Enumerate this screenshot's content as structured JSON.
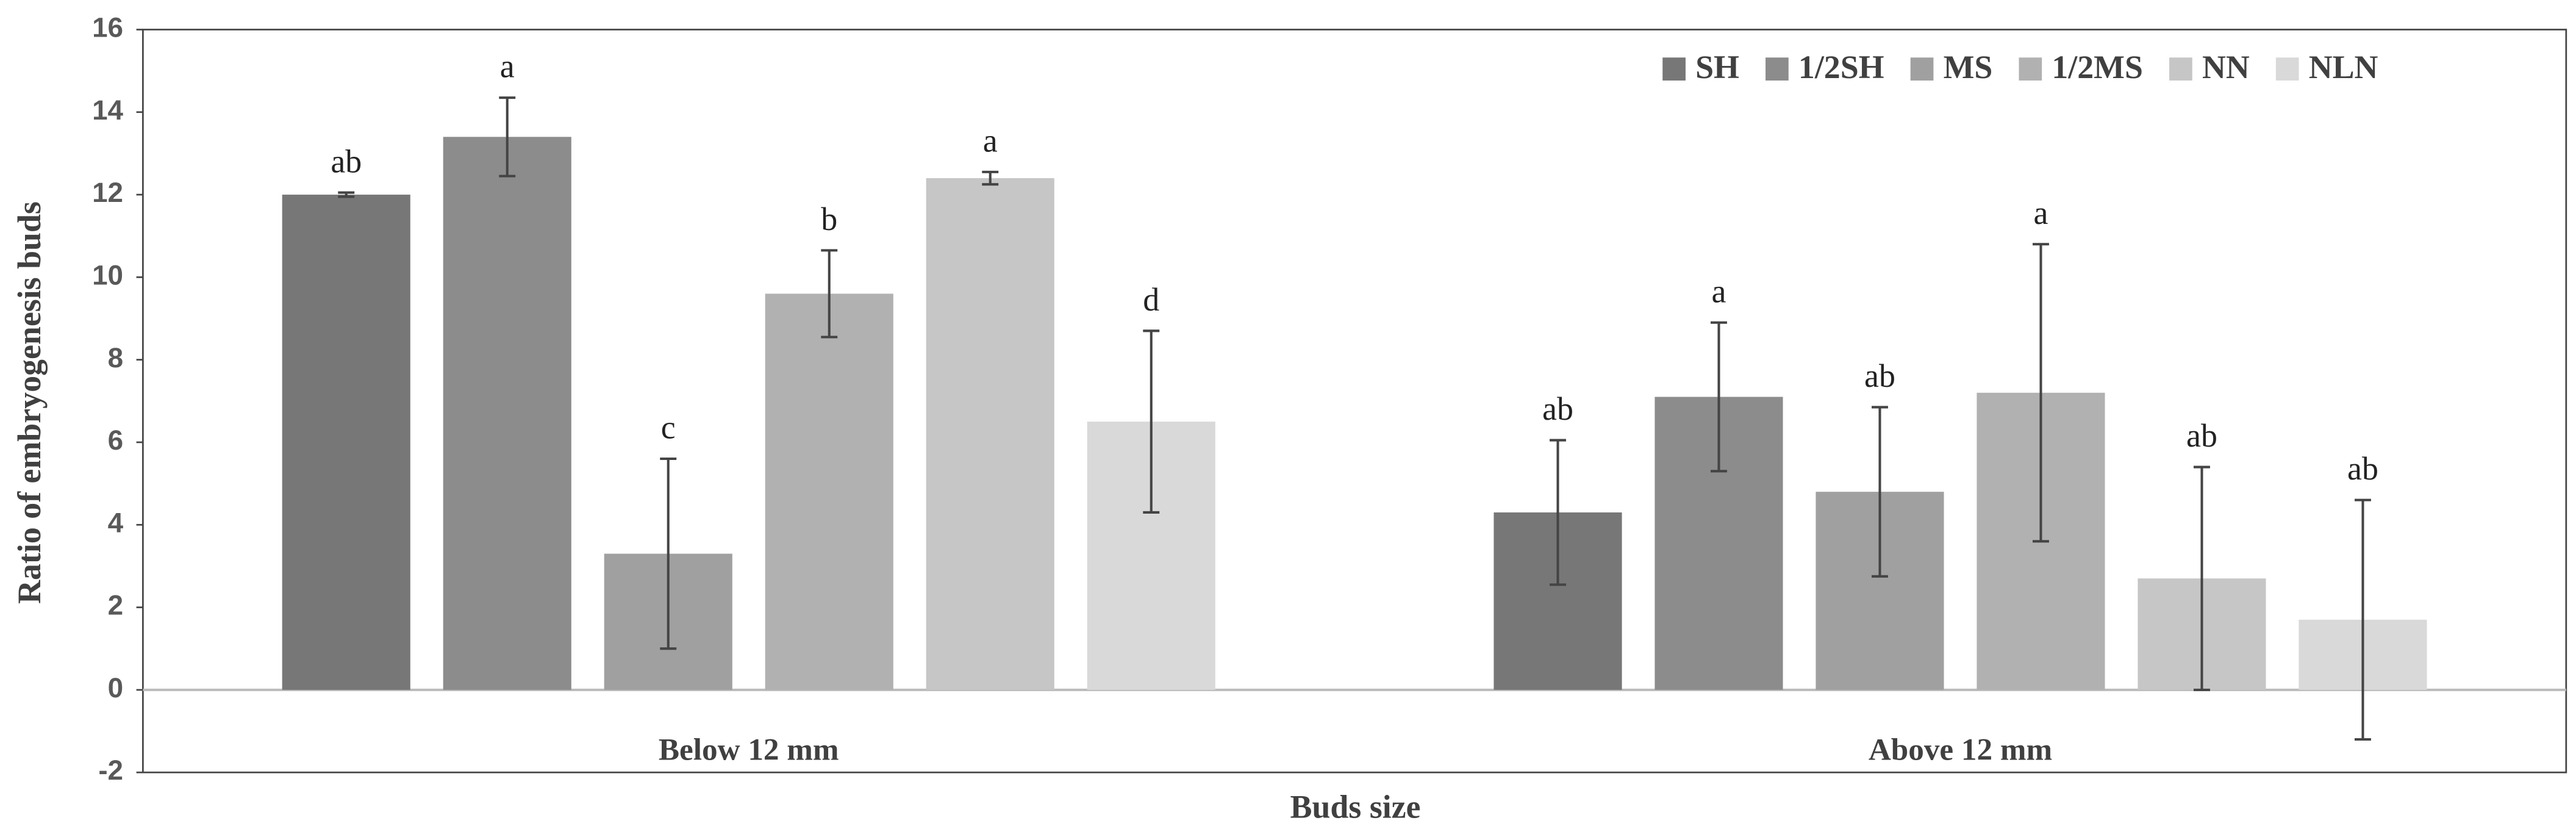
{
  "chart_data": {
    "type": "bar",
    "x_label": "Buds size",
    "y_label": "Ratio of embryogenesis buds",
    "categories": [
      "Below 12 mm",
      "Above 12 mm"
    ],
    "ylim": [
      -2,
      16
    ],
    "yticks": [
      -2,
      0,
      2,
      4,
      6,
      8,
      10,
      12,
      14,
      16
    ],
    "legend": "top-right",
    "series": [
      {
        "name": "SH",
        "color": "#777777",
        "values": [
          12.0,
          4.3
        ],
        "errors": [
          0.05,
          1.75
        ],
        "letters": [
          "ab",
          "ab"
        ]
      },
      {
        "name": "1/2SH",
        "color": "#8c8c8c",
        "values": [
          13.4,
          7.1
        ],
        "errors": [
          0.95,
          1.8
        ],
        "letters": [
          "a",
          "a"
        ]
      },
      {
        "name": "MS",
        "color": "#a0a0a0",
        "values": [
          3.3,
          4.8
        ],
        "errors": [
          2.3,
          2.05
        ],
        "letters": [
          "c",
          "ab"
        ]
      },
      {
        "name": "1/2MS",
        "color": "#b1b1b1",
        "values": [
          9.6,
          7.2
        ],
        "errors": [
          1.05,
          3.6
        ],
        "letters": [
          "b",
          "a"
        ]
      },
      {
        "name": "NN",
        "color": "#c6c6c6",
        "values": [
          12.4,
          2.7
        ],
        "errors": [
          0.15,
          2.7
        ],
        "letters": [
          "a",
          "ab"
        ]
      },
      {
        "name": "NLN",
        "color": "#d9d9d9",
        "values": [
          6.5,
          1.7
        ],
        "errors": [
          2.2,
          2.9
        ],
        "letters": [
          "d",
          "ab"
        ]
      }
    ]
  }
}
